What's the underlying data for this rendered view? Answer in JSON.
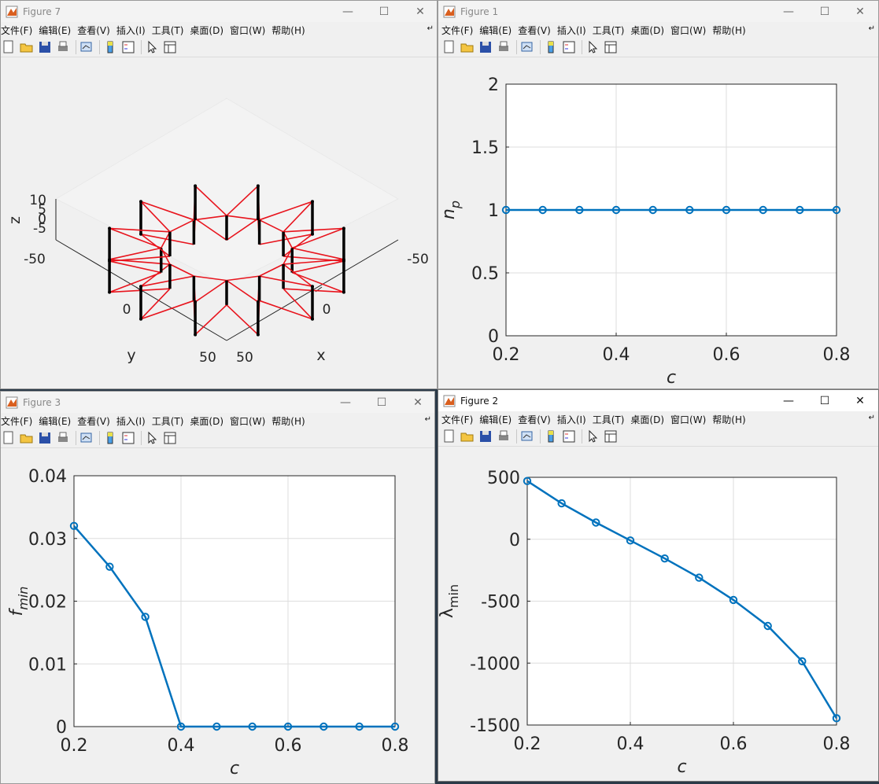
{
  "menu": [
    "文件(F)",
    "编辑(E)",
    "查看(V)",
    "插入(I)",
    "工具(T)",
    "桌面(D)",
    "窗口(W)",
    "帮助(H)"
  ],
  "windows": {
    "fig7": {
      "title": "Figure 7"
    },
    "fig1": {
      "title": "Figure 1"
    },
    "fig3": {
      "title": "Figure 3"
    },
    "fig2": {
      "title": "Figure 2"
    }
  },
  "toolbar_icons": [
    "new-figure-icon",
    "open-file-icon",
    "save-icon",
    "print-icon",
    "link-plot-icon",
    "colorbar-icon",
    "legend-icon",
    "pointer-icon",
    "property-inspector-icon"
  ],
  "colors": {
    "line": "#0072bd",
    "truss_red": "#e8141d",
    "truss_black": "#000000"
  },
  "chart_data": [
    {
      "id": "fig7",
      "type": "other",
      "description_labels": {
        "xlabel": "x",
        "ylabel": "y",
        "zlabel": "z"
      },
      "x_ticks": [
        "-50",
        "0",
        "50"
      ],
      "y_ticks": [
        "-50",
        "0",
        "50"
      ],
      "z_ticks": [
        "10",
        "5",
        "0",
        "-5"
      ]
    },
    {
      "id": "fig1",
      "type": "line",
      "xlabel": "c",
      "ylabel": "n",
      "ylabel_sub": "p",
      "x": [
        0.2,
        0.2667,
        0.3333,
        0.4,
        0.4667,
        0.5333,
        0.6,
        0.6667,
        0.7333,
        0.8
      ],
      "y": [
        1,
        1,
        1,
        1,
        1,
        1,
        1,
        1,
        1,
        1
      ],
      "xlim": [
        0.2,
        0.8
      ],
      "ylim": [
        0,
        2
      ],
      "xticks": [
        "0.2",
        "0.4",
        "0.6",
        "0.8"
      ],
      "yticks": [
        "0",
        "0.5",
        "1",
        "1.5",
        "2"
      ],
      "grid": true
    },
    {
      "id": "fig3",
      "type": "line",
      "xlabel": "c",
      "ylabel": "f",
      "ylabel_sub": "min",
      "x": [
        0.2,
        0.2667,
        0.3333,
        0.4,
        0.4667,
        0.5333,
        0.6,
        0.6667,
        0.7333,
        0.8
      ],
      "y": [
        0.032,
        0.0255,
        0.0175,
        0,
        0,
        0,
        0,
        0,
        0,
        0
      ],
      "xlim": [
        0.2,
        0.8
      ],
      "ylim": [
        0,
        0.04
      ],
      "xticks": [
        "0.2",
        "0.4",
        "0.6",
        "0.8"
      ],
      "yticks": [
        "0",
        "0.01",
        "0.02",
        "0.03",
        "0.04"
      ],
      "grid": true
    },
    {
      "id": "fig2",
      "type": "line",
      "xlabel": "c",
      "ylabel": "λ",
      "ylabel_sub": "min",
      "x": [
        0.2,
        0.2667,
        0.3333,
        0.4,
        0.4667,
        0.5333,
        0.6,
        0.6667,
        0.7333,
        0.8
      ],
      "y": [
        470,
        290,
        135,
        -10,
        -155,
        -310,
        -490,
        -700,
        -985,
        -1445
      ],
      "xlim": [
        0.2,
        0.8
      ],
      "ylim": [
        -1500,
        500
      ],
      "xticks": [
        "0.2",
        "0.4",
        "0.6",
        "0.8"
      ],
      "yticks": [
        "-1500",
        "-1000",
        "-500",
        "0",
        "500"
      ],
      "grid": true
    }
  ]
}
